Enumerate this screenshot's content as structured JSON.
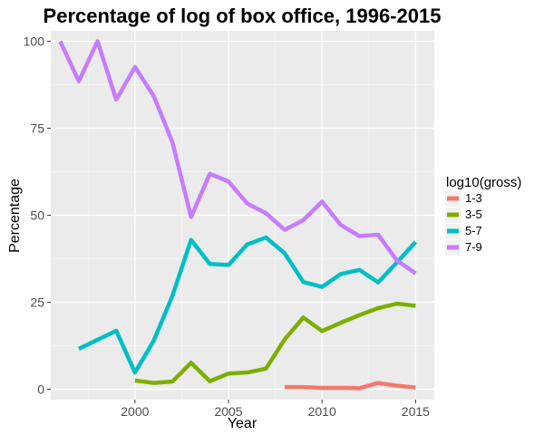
{
  "chart_data": {
    "type": "line",
    "title": "Percentage of log of box office, 1996-2015",
    "xlabel": "Year",
    "ylabel": "Percentage",
    "xlim": [
      1995.5,
      2016.0
    ],
    "ylim": [
      -3,
      103
    ],
    "x_ticks": [
      2000,
      2005,
      2010,
      2015
    ],
    "y_ticks": [
      0,
      25,
      50,
      75,
      100
    ],
    "grid": true,
    "legend": {
      "title": "log10(gross)",
      "position": "right"
    },
    "series": [
      {
        "name": "1-3",
        "color": "#F8766D",
        "x": [
          2008,
          2009,
          2010,
          2011,
          2012,
          2013,
          2014,
          2015
        ],
        "values": [
          0.6,
          0.6,
          0.4,
          0.4,
          0.3,
          1.8,
          1.0,
          0.5
        ]
      },
      {
        "name": "3-5",
        "color": "#7CAE00",
        "x": [
          2000,
          2001,
          2002,
          2003,
          2004,
          2005,
          2006,
          2007,
          2008,
          2009,
          2010,
          2011,
          2012,
          2013,
          2014,
          2015
        ],
        "values": [
          2.5,
          1.8,
          2.2,
          7.6,
          2.3,
          4.5,
          4.8,
          5.9,
          14.3,
          20.6,
          16.7,
          19.1,
          21.3,
          23.3,
          24.6,
          24.0
        ]
      },
      {
        "name": "5-7",
        "color": "#00BFC4",
        "x": [
          1997,
          1998,
          1999,
          2000,
          2001,
          2002,
          2003,
          2004,
          2005,
          2006,
          2007,
          2008,
          2009,
          2010,
          2011,
          2012,
          2013,
          2014,
          2015
        ],
        "values": [
          11.6,
          14.2,
          16.8,
          4.8,
          13.9,
          26.8,
          42.9,
          36.0,
          35.7,
          41.6,
          43.6,
          39.1,
          30.8,
          29.4,
          33.1,
          34.3,
          30.7,
          36.4,
          42.3
        ]
      },
      {
        "name": "7-9",
        "color": "#C77CFF",
        "x": [
          1996,
          1997,
          1998,
          1999,
          2000,
          2001,
          2002,
          2003,
          2004,
          2005,
          2006,
          2007,
          2008,
          2009,
          2010,
          2011,
          2012,
          2013,
          2014,
          2015
        ],
        "values": [
          100.0,
          88.5,
          100.0,
          83.2,
          92.6,
          84.3,
          71.0,
          49.5,
          61.9,
          59.7,
          53.4,
          50.6,
          45.8,
          48.6,
          53.9,
          47.2,
          44.0,
          44.4,
          37.0,
          33.3
        ]
      }
    ]
  }
}
